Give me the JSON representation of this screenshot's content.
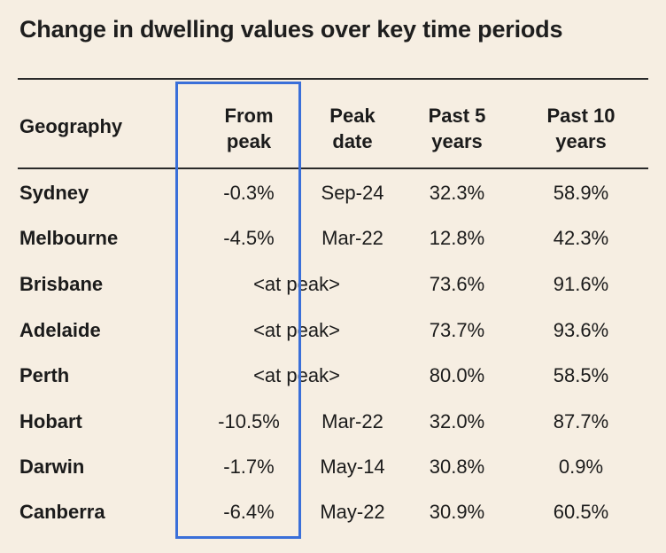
{
  "title": "Change in dwelling values over key time periods",
  "headers": {
    "geography": "Geography",
    "from_peak": [
      "From",
      "peak"
    ],
    "peak_date": [
      "Peak",
      "date"
    ],
    "past5": [
      "Past 5",
      "years"
    ],
    "past10": [
      "Past 10",
      "years"
    ]
  },
  "rows": [
    {
      "name": "Sydney",
      "from_peak": "-0.3%",
      "peak_date": "Sep-24",
      "past5": "32.3%",
      "past10": "58.9%"
    },
    {
      "name": "Melbourne",
      "from_peak": "-4.5%",
      "peak_date": "Mar-22",
      "past5": "12.8%",
      "past10": "42.3%"
    },
    {
      "name": "Brisbane",
      "at_peak": "<at peak>",
      "past5": "73.6%",
      "past10": "91.6%"
    },
    {
      "name": "Adelaide",
      "at_peak": "<at peak>",
      "past5": "73.7%",
      "past10": "93.6%"
    },
    {
      "name": "Perth",
      "at_peak": "<at peak>",
      "past5": "80.0%",
      "past10": "58.5%"
    },
    {
      "name": "Hobart",
      "from_peak": "-10.5%",
      "peak_date": "Mar-22",
      "past5": "32.0%",
      "past10": "87.7%"
    },
    {
      "name": "Darwin",
      "from_peak": "-1.7%",
      "peak_date": "May-14",
      "past5": "30.8%",
      "past10": "0.9%"
    },
    {
      "name": "Canberra",
      "from_peak": "-6.4%",
      "peak_date": "May-22",
      "past5": "30.9%",
      "past10": "60.5%"
    }
  ],
  "colors": {
    "background": "#f6eee2",
    "highlight_border": "#3a6fd9",
    "text": "#1b1b1b"
  }
}
